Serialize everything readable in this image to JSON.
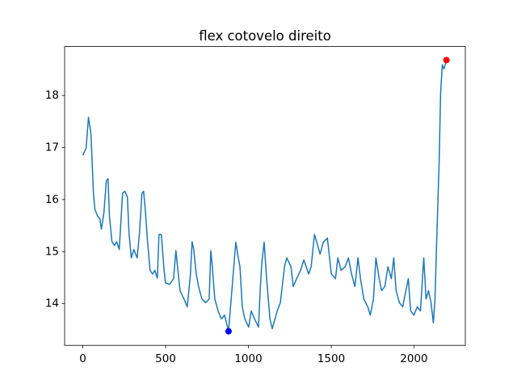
{
  "chart_data": {
    "type": "line",
    "title": "flex cotovelo direito",
    "xlim": [
      -110,
      2310
    ],
    "ylim": [
      13.2,
      18.94
    ],
    "xticks": [
      0,
      500,
      1000,
      1500,
      2000
    ],
    "yticks": [
      14,
      15,
      16,
      17,
      18
    ],
    "series": [
      {
        "color": "#1f77b4",
        "x": [
          0,
          20,
          34,
          49,
          64,
          73,
          88,
          103,
          112,
          127,
          142,
          152,
          161,
          176,
          191,
          205,
          220,
          240,
          254,
          269,
          279,
          293,
          308,
          328,
          342,
          357,
          367,
          377,
          391,
          406,
          421,
          435,
          450,
          460,
          474,
          489,
          499,
          523,
          548,
          562,
          572,
          587,
          611,
          631,
          650,
          660,
          670,
          685,
          699,
          719,
          743,
          763,
          773,
          782,
          797,
          817,
          836,
          856,
          880,
          900,
          924,
          939,
          949,
          963,
          978,
          1002,
          1017,
          1037,
          1061,
          1071,
          1081,
          1095,
          1110,
          1130,
          1144,
          1174,
          1193,
          1218,
          1232,
          1257,
          1271,
          1291,
          1315,
          1335,
          1364,
          1379,
          1399,
          1413,
          1433,
          1452,
          1477,
          1501,
          1526,
          1540,
          1560,
          1584,
          1604,
          1623,
          1643,
          1662,
          1677,
          1697,
          1721,
          1736,
          1755,
          1770,
          1790,
          1804,
          1824,
          1843,
          1863,
          1878,
          1892,
          1912,
          1932,
          1951,
          1966,
          1980,
          2000,
          2020,
          2039,
          2059,
          2073,
          2088,
          2103,
          2117,
          2127,
          2137,
          2152,
          2161,
          2171,
          2181,
          2191,
          2200
        ],
        "values": [
          16.85,
          16.99,
          17.58,
          17.27,
          16.12,
          15.81,
          15.69,
          15.63,
          15.43,
          15.74,
          16.36,
          16.4,
          15.67,
          15.19,
          15.12,
          15.19,
          15.04,
          16.12,
          16.16,
          16.05,
          15.35,
          14.88,
          15.04,
          14.88,
          15.35,
          16.12,
          16.16,
          15.81,
          15.19,
          14.64,
          14.57,
          14.64,
          14.49,
          15.33,
          15.33,
          14.71,
          14.4,
          14.37,
          14.48,
          15.02,
          14.71,
          14.25,
          14.09,
          13.94,
          14.57,
          15.19,
          15.04,
          14.57,
          14.33,
          14.09,
          14.02,
          14.09,
          15.02,
          14.71,
          14.09,
          13.86,
          13.71,
          13.78,
          13.47,
          14.25,
          15.18,
          14.88,
          14.71,
          13.94,
          13.71,
          13.55,
          13.86,
          13.71,
          13.55,
          14.25,
          14.79,
          15.18,
          14.48,
          13.71,
          13.52,
          13.86,
          14.02,
          14.71,
          14.88,
          14.71,
          14.33,
          14.48,
          14.64,
          14.84,
          14.57,
          14.71,
          15.33,
          15.18,
          14.95,
          15.18,
          15.26,
          14.57,
          14.48,
          14.88,
          14.64,
          14.71,
          14.88,
          14.57,
          14.33,
          14.88,
          14.48,
          14.09,
          13.94,
          13.78,
          14.09,
          14.88,
          14.48,
          14.25,
          14.33,
          14.71,
          14.48,
          14.88,
          14.25,
          14.02,
          13.94,
          14.25,
          14.48,
          13.86,
          13.78,
          13.94,
          13.86,
          14.88,
          14.09,
          14.25,
          14.02,
          13.63,
          14.09,
          15.18,
          16.73,
          18.05,
          18.59,
          18.51,
          18.62,
          18.65
        ]
      }
    ],
    "points": [
      {
        "x": 880,
        "y": 13.47,
        "color": "#0000ff"
      },
      {
        "x": 2196,
        "y": 18.68,
        "color": "#ff0000"
      }
    ]
  }
}
